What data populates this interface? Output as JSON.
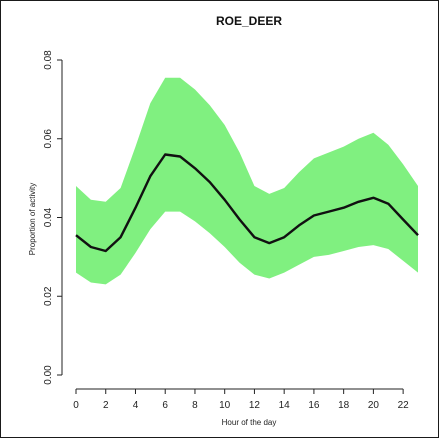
{
  "chart_data": {
    "type": "area",
    "title": "ROE_DEER",
    "xlabel": "Hour of the day",
    "ylabel": "Proportion of activity",
    "xlim": [
      0,
      23
    ],
    "ylim": [
      0,
      0.08
    ],
    "x_ticks": [
      0,
      2,
      4,
      6,
      8,
      10,
      12,
      14,
      16,
      18,
      20,
      22
    ],
    "y_ticks": [
      "0.00",
      "0.02",
      "0.04",
      "0.06",
      "0.08"
    ],
    "grid": false,
    "colors": {
      "band": "#80f080",
      "line": "#111111"
    },
    "x": [
      0,
      1,
      2,
      3,
      4,
      5,
      6,
      7,
      8,
      9,
      10,
      11,
      12,
      13,
      14,
      15,
      16,
      17,
      18,
      19,
      20,
      21,
      22,
      23
    ],
    "mean": [
      0.0355,
      0.0325,
      0.0315,
      0.035,
      0.0425,
      0.0505,
      0.056,
      0.0555,
      0.0525,
      0.049,
      0.0445,
      0.0395,
      0.035,
      0.0335,
      0.035,
      0.038,
      0.0405,
      0.0415,
      0.0425,
      0.044,
      0.045,
      0.0435,
      0.0395,
      0.0355
    ],
    "upper": [
      0.048,
      0.0445,
      0.044,
      0.0475,
      0.058,
      0.069,
      0.0755,
      0.0755,
      0.0725,
      0.0685,
      0.0635,
      0.0565,
      0.048,
      0.046,
      0.0475,
      0.0515,
      0.055,
      0.0565,
      0.058,
      0.06,
      0.0615,
      0.0585,
      0.0535,
      0.048
    ],
    "lower": [
      0.026,
      0.0235,
      0.023,
      0.0255,
      0.031,
      0.037,
      0.0415,
      0.0415,
      0.039,
      0.036,
      0.0325,
      0.0285,
      0.0255,
      0.0245,
      0.026,
      0.028,
      0.03,
      0.0305,
      0.0315,
      0.0325,
      0.033,
      0.032,
      0.029,
      0.026
    ]
  }
}
